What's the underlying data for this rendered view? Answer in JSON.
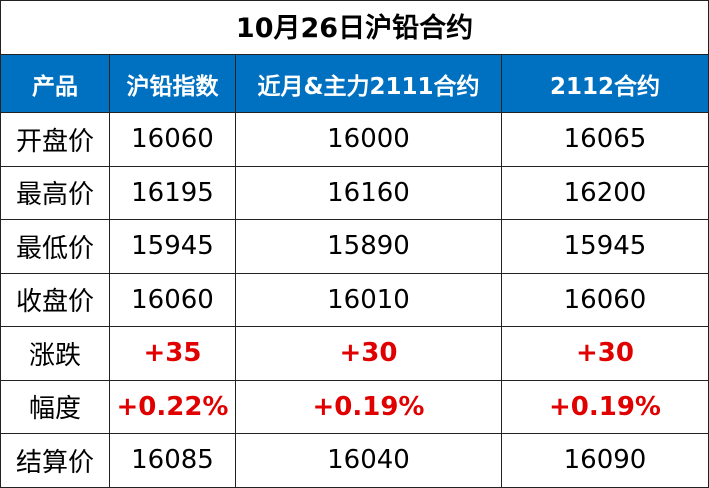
{
  "title": "10月26日沪铅合约",
  "table": {
    "header": [
      "产品",
      "沪铅指数",
      "近月&主力2111合约",
      "2112合约"
    ],
    "rows": [
      [
        "开盘价",
        "16060",
        "16000",
        "16065"
      ],
      [
        "最高价",
        "16195",
        "16160",
        "16200"
      ],
      [
        "最低价",
        "15945",
        "15890",
        "15945"
      ],
      [
        "收盘价",
        "16060",
        "16010",
        "16060"
      ],
      [
        "涨跌",
        "+35",
        "+30",
        "+30"
      ],
      [
        "幅度",
        "+0.22%",
        "+0.19%",
        "+0.19%"
      ],
      [
        "结算价",
        "16085",
        "16040",
        "16090"
      ]
    ]
  }
}
